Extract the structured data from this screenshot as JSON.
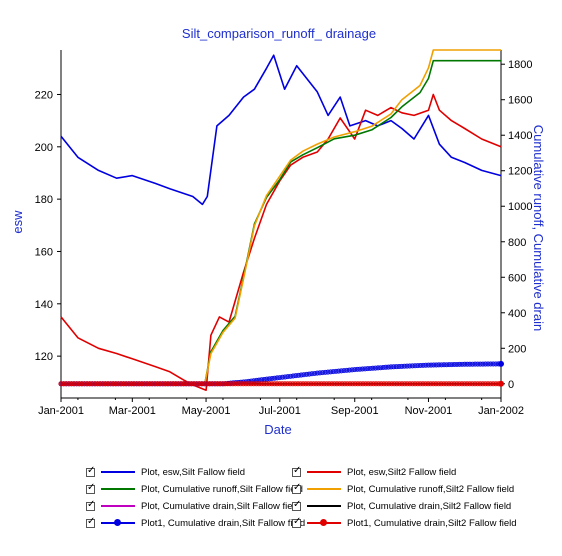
{
  "chart_data": {
    "type": "line",
    "title": "Silt_comparison_runoff_ drainage",
    "xlabel": "Date",
    "ylabel": "esw",
    "y2label": "Cumulative runoff, Cumulative drain",
    "x_ticks": [
      "Jan-2001",
      "Mar-2001",
      "May-2001",
      "Jul-2001",
      "Sep-2001",
      "Nov-2001",
      "Jan-2002"
    ],
    "ylim": [
      104,
      237
    ],
    "y_ticks": [
      120,
      140,
      160,
      180,
      200,
      220
    ],
    "y2lim": [
      -80,
      1880
    ],
    "y2_ticks": [
      0,
      200,
      400,
      600,
      800,
      1000,
      1200,
      1400,
      1600,
      1800
    ],
    "grid": false,
    "legend_position": "bottom",
    "series": [
      {
        "name": "Plot, esw,Silt Fallow field",
        "axis": "left",
        "color": "#0000e0",
        "style": "line",
        "x": [
          "2001-01-01",
          "2001-01-15",
          "2001-02-01",
          "2001-02-16",
          "2001-03-01",
          "2001-03-20",
          "2001-04-01",
          "2001-04-20",
          "2001-04-28",
          "2001-05-02",
          "2001-05-10",
          "2001-05-20",
          "2001-06-01",
          "2001-06-10",
          "2001-06-20",
          "2001-06-26",
          "2001-07-05",
          "2001-07-15",
          "2001-08-01",
          "2001-08-10",
          "2001-08-20",
          "2001-08-28",
          "2001-09-10",
          "2001-09-20",
          "2001-10-01",
          "2001-10-10",
          "2001-10-20",
          "2001-11-01",
          "2001-11-10",
          "2001-11-20",
          "2001-12-01",
          "2001-12-15",
          "2001-12-31"
        ],
        "y": [
          204,
          196,
          191,
          188,
          189,
          186,
          184,
          181,
          178,
          181,
          208,
          212,
          219,
          222,
          230,
          235,
          222,
          231,
          221,
          212,
          219,
          208,
          210,
          208,
          210,
          207,
          203,
          212,
          201,
          196,
          194,
          191,
          189
        ]
      },
      {
        "name": "Plot, esw,Silt2 Fallow field",
        "axis": "left",
        "color": "#e00000",
        "style": "line",
        "x": [
          "2001-01-01",
          "2001-01-15",
          "2001-02-01",
          "2001-02-16",
          "2001-03-01",
          "2001-03-20",
          "2001-04-01",
          "2001-04-12",
          "2001-04-20",
          "2001-05-01",
          "2001-05-05",
          "2001-05-12",
          "2001-05-20",
          "2001-06-01",
          "2001-06-10",
          "2001-06-20",
          "2001-07-01",
          "2001-07-10",
          "2001-07-20",
          "2001-08-01",
          "2001-08-10",
          "2001-08-20",
          "2001-09-01",
          "2001-09-10",
          "2001-09-20",
          "2001-10-01",
          "2001-10-10",
          "2001-10-20",
          "2001-11-01",
          "2001-11-05",
          "2001-11-10",
          "2001-11-20",
          "2001-12-01",
          "2001-12-15",
          "2001-12-31"
        ],
        "y": [
          135,
          127,
          123,
          121,
          119,
          116,
          114,
          111,
          109,
          107,
          128,
          135,
          133,
          152,
          165,
          178,
          187,
          193,
          196,
          198,
          203,
          211,
          203,
          214,
          212,
          215,
          213,
          212,
          214,
          220,
          214,
          210,
          207,
          203,
          200
        ]
      },
      {
        "name": "Plot, Cumulative runoff,Silt Fallow field",
        "axis": "right",
        "color": "#007800",
        "style": "line",
        "x": [
          "2001-01-01",
          "2001-04-30",
          "2001-05-05",
          "2001-05-15",
          "2001-05-25",
          "2001-06-01",
          "2001-06-10",
          "2001-06-20",
          "2001-07-01",
          "2001-07-10",
          "2001-07-20",
          "2001-08-01",
          "2001-08-15",
          "2001-09-01",
          "2001-09-15",
          "2001-10-01",
          "2001-10-10",
          "2001-10-25",
          "2001-11-01",
          "2001-11-05",
          "2001-12-31"
        ],
        "y": [
          0,
          0,
          180,
          300,
          380,
          600,
          900,
          1050,
          1150,
          1250,
          1290,
          1330,
          1380,
          1400,
          1430,
          1500,
          1560,
          1640,
          1720,
          1820,
          1820
        ]
      },
      {
        "name": "Plot, Cumulative runoff,Silt2 Fallow field",
        "axis": "right",
        "color": "#f0a000",
        "style": "line",
        "x": [
          "2001-01-01",
          "2001-04-30",
          "2001-05-05",
          "2001-05-15",
          "2001-05-25",
          "2001-06-01",
          "2001-06-10",
          "2001-06-20",
          "2001-07-01",
          "2001-07-10",
          "2001-07-20",
          "2001-08-01",
          "2001-08-15",
          "2001-09-01",
          "2001-09-15",
          "2001-10-01",
          "2001-10-10",
          "2001-10-25",
          "2001-11-01",
          "2001-11-05",
          "2001-12-31"
        ],
        "y": [
          0,
          0,
          170,
          290,
          370,
          590,
          890,
          1060,
          1170,
          1260,
          1310,
          1350,
          1390,
          1420,
          1450,
          1520,
          1600,
          1680,
          1780,
          1880,
          1880
        ]
      },
      {
        "name": "Plot, Cumulative drain,Silt Fallow field",
        "axis": "right",
        "color": "#c000c0",
        "style": "line",
        "x": [
          "2001-01-01",
          "2001-12-31"
        ],
        "y": [
          0,
          0
        ]
      },
      {
        "name": "Plot, Cumulative drain,Silt2 Fallow field",
        "axis": "right",
        "color": "#000000",
        "style": "line",
        "x": [
          "2001-01-01",
          "2001-12-31"
        ],
        "y": [
          0,
          0
        ]
      },
      {
        "name": "Plot1, Cumulative drain,Silt Fallow field",
        "axis": "right",
        "color": "#0000e0",
        "style": "markers",
        "x": [
          "2001-01-01",
          "2001-05-15",
          "2001-06-01",
          "2001-07-01",
          "2001-08-01",
          "2001-09-01",
          "2001-10-01",
          "2001-11-01",
          "2001-12-01",
          "2001-12-31"
        ],
        "y": [
          0,
          0,
          10,
          35,
          60,
          80,
          95,
          105,
          110,
          112
        ]
      },
      {
        "name": "Plot1, Cumulative drain,Silt2 Fallow field",
        "axis": "right",
        "color": "#e00000",
        "style": "markers",
        "x": [
          "2001-01-01",
          "2001-12-31"
        ],
        "y": [
          0,
          0
        ]
      }
    ]
  }
}
